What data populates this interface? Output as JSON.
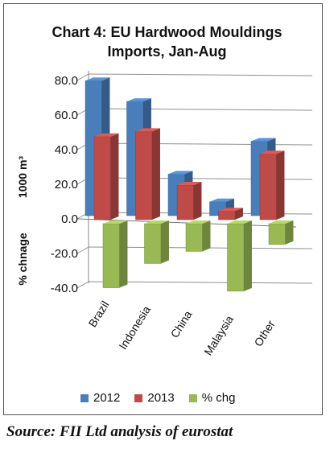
{
  "title_lines": [
    "Chart 4: EU Hardwood Mouldings",
    "Imports, Jan-Aug"
  ],
  "ylabel_top": "1000 m³",
  "ylabel_bottom": "% chnage",
  "source": "Source: FII Ltd analysis of eurostat",
  "colors": {
    "s2012": "#4a7ebb",
    "s2013": "#be4b48",
    "chg": "#98b954"
  },
  "chart_data": {
    "type": "bar",
    "categories": [
      "Brazil",
      "Indonesia",
      "China",
      "Malaysia",
      "Other"
    ],
    "series": [
      {
        "name": "2012",
        "values": [
          78,
          66,
          24,
          8,
          43
        ]
      },
      {
        "name": "2013",
        "values": [
          48,
          51,
          20,
          5,
          38
        ]
      },
      {
        "name": "% chg",
        "values": [
          -37,
          -23,
          -16,
          -39,
          -12
        ]
      }
    ],
    "y_ticks": [
      "80.0",
      "60.0",
      "40.0",
      "20.0",
      "0.0",
      "-20.0",
      "-40.0"
    ],
    "ylim": [
      -40,
      80
    ],
    "grid": true,
    "legend_position": "bottom"
  }
}
